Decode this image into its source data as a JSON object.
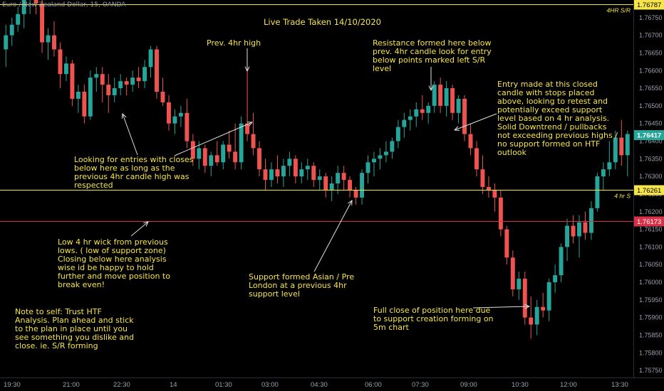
{
  "symbol": "Euro / New Zealand Dollar, 15, OANDA",
  "title": "Live Trade Taken 14/10/2020",
  "annotations": {
    "prev_high": "Prev. 4hr high",
    "entries": "Looking for entries with closes\nbelow here as long as the\nprevious 4hr candle high was\nrespected",
    "resistance": "Resistance formed here below\nprev. 4hr candle look for entry\nbelow points marked left S/R\nlevel",
    "entry": "Entry made at this closed\ncandle with stops placed\nabove, looking to retest and\npotentially exceed support\nlevel based on 4 hr analysis.\nSolid Downtrend / pullbacks\nnot exceeding previous highs /\nno support formed on HTF\noutlook",
    "low_wick": "Low 4 hr wick from previous\nlows. ( low of support zone)\nClosing below here analysis\nwise id be happy to hold\nfurther and move position to\nbreak even!",
    "support": "Support formed Asian / Pre\nLondon at a previous 4hr\nsupport level",
    "note_to_self": "Note to self: Trust HTF\nAnalysis. Plan ahead and stick\nto the plan in place until you\nsee something you dislike and\nclose.  ie. S/R forming",
    "full_close": "Full close of position here due\nto support creation forming on\n5m chart"
  },
  "chart_data": {
    "type": "candlestick",
    "title": "Live Trade Taken 14/10/2020",
    "ylim": [
      1.7573,
      1.768
    ],
    "y_ticks": [
      "1.75750",
      "1.75800",
      "1.75850",
      "1.75900",
      "1.75950",
      "1.76000",
      "1.76050",
      "1.76100",
      "1.76150",
      "1.76200",
      "1.76250",
      "1.76300",
      "1.76350",
      "1.76400",
      "1.76450",
      "1.76500",
      "1.76550",
      "1.76600",
      "1.76650",
      "1.76700",
      "1.76750"
    ],
    "x_tick_labels": [
      "19:30",
      "21:00",
      "22:30",
      "14",
      "01:30",
      "03:00",
      "04:30",
      "06:00",
      "07:30",
      "09:00",
      "10:30",
      "12:00",
      "13:30"
    ],
    "levels": [
      {
        "name": "4HR S/R",
        "price": 1.76787,
        "label": "1.76787",
        "color": "#f6e54a"
      },
      {
        "name": "4 hr S",
        "price": 1.76261,
        "label": "1.76261",
        "color": "#f6e54a"
      },
      {
        "name": "",
        "price": 1.76173,
        "label": "1.76173",
        "color": "#d8324a"
      }
    ],
    "last_price": {
      "label": "1.76417",
      "color": "#26a69a"
    },
    "up_color": "#26a69a",
    "down_color": "#ef5350",
    "candles": [
      [
        1.7666,
        1.7673,
        1.7661,
        1.767
      ],
      [
        1.767,
        1.7675,
        1.7667,
        1.7673
      ],
      [
        1.7673,
        1.7678,
        1.7671,
        1.7676
      ],
      [
        1.7676,
        1.7682,
        1.7672,
        1.768
      ],
      [
        1.768,
        1.7684,
        1.7676,
        1.7681
      ],
      [
        1.7681,
        1.7685,
        1.7676,
        1.7679
      ],
      [
        1.7679,
        1.768,
        1.7665,
        1.7668
      ],
      [
        1.7668,
        1.7672,
        1.7663,
        1.767
      ],
      [
        1.767,
        1.7674,
        1.7664,
        1.7666
      ],
      [
        1.7666,
        1.7668,
        1.7655,
        1.7659
      ],
      [
        1.7659,
        1.7664,
        1.7657,
        1.7662
      ],
      [
        1.7662,
        1.7663,
        1.765,
        1.7652
      ],
      [
        1.7652,
        1.7656,
        1.7648,
        1.7654
      ],
      [
        1.7654,
        1.7656,
        1.7645,
        1.7647
      ],
      [
        1.7647,
        1.766,
        1.7646,
        1.7658
      ],
      [
        1.7658,
        1.7661,
        1.7654,
        1.7659
      ],
      [
        1.7659,
        1.7661,
        1.7651,
        1.7656
      ],
      [
        1.7656,
        1.7659,
        1.7648,
        1.7653
      ],
      [
        1.7653,
        1.7658,
        1.7651,
        1.7655
      ],
      [
        1.7655,
        1.7659,
        1.7653,
        1.7657
      ],
      [
        1.7657,
        1.7658,
        1.7653,
        1.7656
      ],
      [
        1.7656,
        1.766,
        1.7654,
        1.7658
      ],
      [
        1.7658,
        1.7661,
        1.7655,
        1.7657
      ],
      [
        1.7657,
        1.7663,
        1.7655,
        1.7661
      ],
      [
        1.7661,
        1.7667,
        1.7658,
        1.7666
      ],
      [
        1.7666,
        1.7667,
        1.7652,
        1.7654
      ],
      [
        1.7654,
        1.7658,
        1.765,
        1.7651
      ],
      [
        1.7651,
        1.7653,
        1.7643,
        1.7645
      ],
      [
        1.7645,
        1.7649,
        1.7642,
        1.7647
      ],
      [
        1.7647,
        1.765,
        1.7644,
        1.7648
      ],
      [
        1.7648,
        1.7652,
        1.7638,
        1.764
      ],
      [
        1.764,
        1.7642,
        1.7633,
        1.7635
      ],
      [
        1.7635,
        1.764,
        1.7632,
        1.7638
      ],
      [
        1.7638,
        1.7639,
        1.7631,
        1.7633
      ],
      [
        1.7633,
        1.7637,
        1.763,
        1.7636
      ],
      [
        1.7636,
        1.764,
        1.7633,
        1.7634
      ],
      [
        1.7634,
        1.764,
        1.7632,
        1.7639
      ],
      [
        1.7639,
        1.7643,
        1.7635,
        1.7637
      ],
      [
        1.7637,
        1.7645,
        1.7632,
        1.7634
      ],
      [
        1.7634,
        1.7647,
        1.7632,
        1.7645
      ],
      [
        1.7645,
        1.7661,
        1.764,
        1.7642
      ],
      [
        1.7642,
        1.7648,
        1.7636,
        1.7638
      ],
      [
        1.7638,
        1.764,
        1.763,
        1.7632
      ],
      [
        1.7632,
        1.7635,
        1.7626,
        1.7629
      ],
      [
        1.7629,
        1.7634,
        1.7627,
        1.7632
      ],
      [
        1.7632,
        1.7636,
        1.7628,
        1.763
      ],
      [
        1.763,
        1.7635,
        1.7627,
        1.7633
      ],
      [
        1.7633,
        1.7637,
        1.763,
        1.7635
      ],
      [
        1.7635,
        1.7636,
        1.7628,
        1.763
      ],
      [
        1.763,
        1.7634,
        1.7628,
        1.7632
      ],
      [
        1.7632,
        1.7635,
        1.7629,
        1.7633
      ],
      [
        1.7633,
        1.7634,
        1.7627,
        1.7629
      ],
      [
        1.7629,
        1.7632,
        1.7626,
        1.763
      ],
      [
        1.763,
        1.7631,
        1.7624,
        1.7626
      ],
      [
        1.7626,
        1.763,
        1.7623,
        1.7628
      ],
      [
        1.7628,
        1.7633,
        1.7625,
        1.7631
      ],
      [
        1.7631,
        1.7633,
        1.7626,
        1.7629
      ],
      [
        1.7629,
        1.763,
        1.7624,
        1.7626
      ],
      [
        1.7626,
        1.7627,
        1.7622,
        1.7624
      ],
      [
        1.7624,
        1.7632,
        1.7622,
        1.7631
      ],
      [
        1.7631,
        1.7636,
        1.7628,
        1.7634
      ],
      [
        1.7634,
        1.7637,
        1.763,
        1.7635
      ],
      [
        1.7635,
        1.7638,
        1.7632,
        1.7636
      ],
      [
        1.7636,
        1.764,
        1.7634,
        1.7637
      ],
      [
        1.7637,
        1.7641,
        1.7635,
        1.764
      ],
      [
        1.764,
        1.7646,
        1.7638,
        1.7644
      ],
      [
        1.7644,
        1.7648,
        1.7641,
        1.7646
      ],
      [
        1.7646,
        1.7649,
        1.7643,
        1.7647
      ],
      [
        1.7647,
        1.7651,
        1.7644,
        1.7649
      ],
      [
        1.7649,
        1.7653,
        1.7646,
        1.7648
      ],
      [
        1.7648,
        1.7651,
        1.7645,
        1.765
      ],
      [
        1.765,
        1.7657,
        1.7648,
        1.7656
      ],
      [
        1.7656,
        1.7658,
        1.7648,
        1.765
      ],
      [
        1.765,
        1.7657,
        1.7647,
        1.7655
      ],
      [
        1.7655,
        1.7656,
        1.7646,
        1.7648
      ],
      [
        1.7648,
        1.7653,
        1.7645,
        1.7652
      ],
      [
        1.7652,
        1.7653,
        1.764,
        1.7642
      ],
      [
        1.7642,
        1.7645,
        1.7636,
        1.7638
      ],
      [
        1.7638,
        1.764,
        1.763,
        1.7632
      ],
      [
        1.7632,
        1.7636,
        1.7625,
        1.7627
      ],
      [
        1.7627,
        1.763,
        1.7624,
        1.7626
      ],
      [
        1.7626,
        1.7628,
        1.762,
        1.7624
      ],
      [
        1.7624,
        1.7626,
        1.7613,
        1.7615
      ],
      [
        1.7615,
        1.7616,
        1.7605,
        1.7607
      ],
      [
        1.7607,
        1.7609,
        1.7596,
        1.7598
      ],
      [
        1.7598,
        1.7603,
        1.7595,
        1.7601
      ],
      [
        1.7601,
        1.7603,
        1.7588,
        1.759
      ],
      [
        1.759,
        1.7596,
        1.7584,
        1.7588
      ],
      [
        1.7588,
        1.7595,
        1.7585,
        1.7593
      ],
      [
        1.7593,
        1.7597,
        1.759,
        1.7592
      ],
      [
        1.7592,
        1.7601,
        1.7589,
        1.76
      ],
      [
        1.76,
        1.7605,
        1.7597,
        1.7602
      ],
      [
        1.7602,
        1.7611,
        1.76,
        1.761
      ],
      [
        1.761,
        1.7618,
        1.7606,
        1.7616
      ],
      [
        1.7616,
        1.7619,
        1.7611,
        1.7613
      ],
      [
        1.7613,
        1.7619,
        1.7607,
        1.7617
      ],
      [
        1.7617,
        1.762,
        1.7612,
        1.7614
      ],
      [
        1.7614,
        1.7623,
        1.7612,
        1.7621
      ],
      [
        1.7621,
        1.7631,
        1.762,
        1.763
      ],
      [
        1.763,
        1.7634,
        1.7626,
        1.7632
      ],
      [
        1.7632,
        1.764,
        1.763,
        1.7634
      ],
      [
        1.7634,
        1.7643,
        1.7632,
        1.7641
      ],
      [
        1.7641,
        1.7646,
        1.7633,
        1.7636
      ],
      [
        1.7636,
        1.7643,
        1.763,
        1.7642
      ]
    ]
  }
}
